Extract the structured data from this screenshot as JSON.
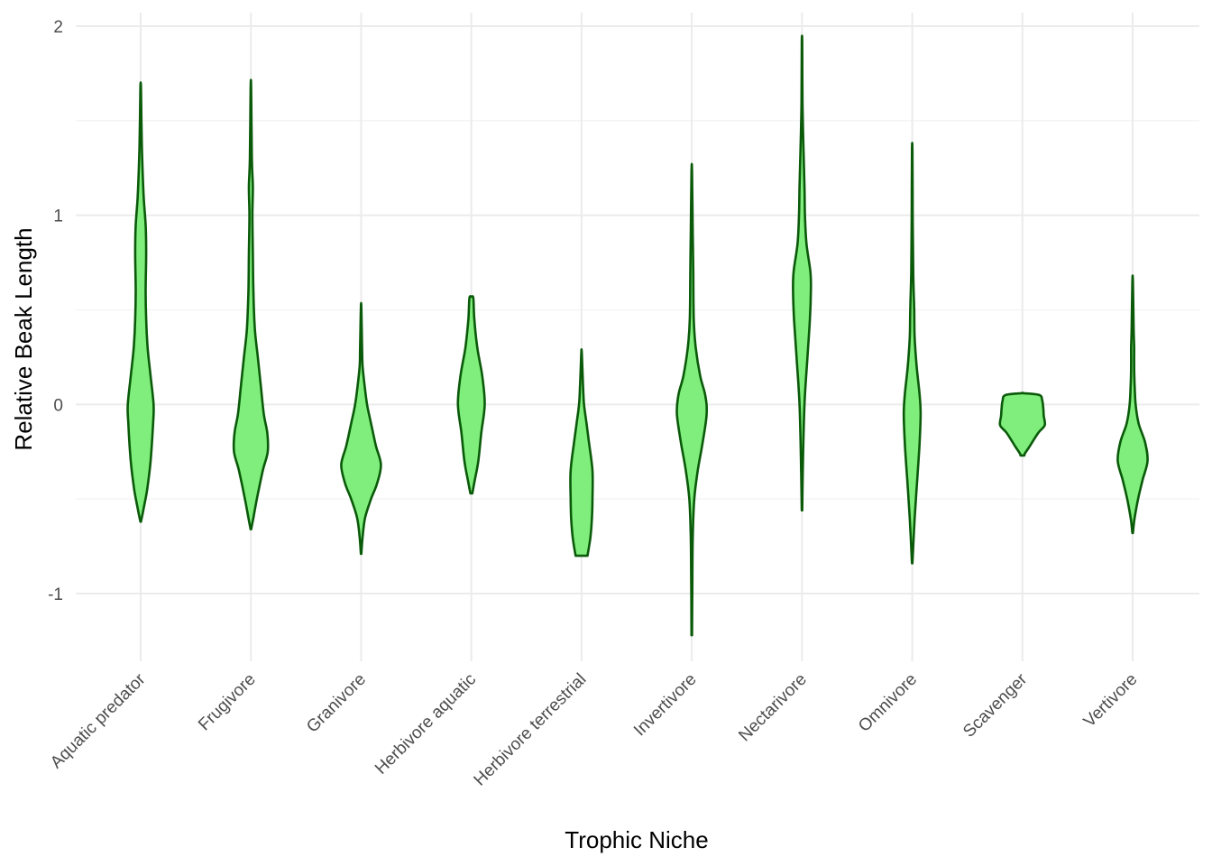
{
  "chart_data": {
    "type": "violin",
    "xlabel": "Trophic Niche",
    "ylabel": "Relative Beak Length",
    "ylim": [
      -1.35,
      2.07
    ],
    "yticks": [
      -1,
      0,
      1,
      2
    ],
    "ytick_labels": [
      "-1",
      "0",
      "1",
      "2"
    ],
    "grid": true,
    "fill_color": "#80ee7c",
    "stroke_color": "#0a5a0a",
    "categories": [
      "Aquatic predator",
      "Frugivore",
      "Granivore",
      "Herbivore aquatic",
      "Herbivore terrestrial",
      "Invertivore",
      "Nectarivore",
      "Omnivore",
      "Scavenger",
      "Vertivore"
    ],
    "violins": [
      {
        "category": "Aquatic predator",
        "profile": [
          [
            -0.62,
            0.005
          ],
          [
            -0.55,
            0.06
          ],
          [
            -0.45,
            0.13
          ],
          [
            -0.3,
            0.2
          ],
          [
            -0.1,
            0.25
          ],
          [
            0,
            0.26
          ],
          [
            0.15,
            0.2
          ],
          [
            0.3,
            0.14
          ],
          [
            0.45,
            0.11
          ],
          [
            0.6,
            0.1
          ],
          [
            0.8,
            0.11
          ],
          [
            0.95,
            0.1
          ],
          [
            1.1,
            0.06
          ],
          [
            1.3,
            0.03
          ],
          [
            1.5,
            0.015
          ],
          [
            1.68,
            0.005
          ]
        ]
      },
      {
        "category": "Frugivore",
        "profile": [
          [
            -0.66,
            0.005
          ],
          [
            -0.6,
            0.05
          ],
          [
            -0.5,
            0.12
          ],
          [
            -0.35,
            0.24
          ],
          [
            -0.25,
            0.34
          ],
          [
            -0.15,
            0.33
          ],
          [
            -0.05,
            0.26
          ],
          [
            0.1,
            0.2
          ],
          [
            0.25,
            0.14
          ],
          [
            0.4,
            0.08
          ],
          [
            0.6,
            0.05
          ],
          [
            0.8,
            0.04
          ],
          [
            1.0,
            0.03
          ],
          [
            1.15,
            0.04
          ],
          [
            1.3,
            0.02
          ],
          [
            1.67,
            0.005
          ]
        ]
      },
      {
        "category": "Granivore",
        "profile": [
          [
            -0.79,
            0.005
          ],
          [
            -0.7,
            0.03
          ],
          [
            -0.6,
            0.08
          ],
          [
            -0.5,
            0.2
          ],
          [
            -0.42,
            0.32
          ],
          [
            -0.32,
            0.4
          ],
          [
            -0.22,
            0.3
          ],
          [
            -0.1,
            0.2
          ],
          [
            0,
            0.12
          ],
          [
            0.1,
            0.07
          ],
          [
            0.2,
            0.03
          ],
          [
            0.3,
            0.02
          ],
          [
            0.51,
            0.005
          ]
        ]
      },
      {
        "category": "Herbivore aquatic",
        "profile": [
          [
            -0.47,
            0.02
          ],
          [
            -0.4,
            0.07
          ],
          [
            -0.3,
            0.14
          ],
          [
            -0.15,
            0.2
          ],
          [
            0,
            0.27
          ],
          [
            0.15,
            0.22
          ],
          [
            0.3,
            0.12
          ],
          [
            0.45,
            0.06
          ],
          [
            0.56,
            0.04
          ],
          [
            0.57,
            0.005
          ]
        ]
      },
      {
        "category": "Herbivore terrestrial",
        "profile": [
          [
            -0.8,
            0.12
          ],
          [
            -0.7,
            0.18
          ],
          [
            -0.6,
            0.21
          ],
          [
            -0.5,
            0.22
          ],
          [
            -0.35,
            0.22
          ],
          [
            -0.2,
            0.15
          ],
          [
            -0.1,
            0.1
          ],
          [
            0,
            0.05
          ],
          [
            0.1,
            0.03
          ],
          [
            0.27,
            0.005
          ]
        ]
      },
      {
        "category": "Invertivore",
        "profile": [
          [
            -1.22,
            0.005
          ],
          [
            -1.0,
            0.01
          ],
          [
            -0.7,
            0.02
          ],
          [
            -0.5,
            0.05
          ],
          [
            -0.35,
            0.12
          ],
          [
            -0.2,
            0.22
          ],
          [
            -0.05,
            0.3
          ],
          [
            0.05,
            0.27
          ],
          [
            0.15,
            0.17
          ],
          [
            0.3,
            0.08
          ],
          [
            0.45,
            0.04
          ],
          [
            0.7,
            0.03
          ],
          [
            0.9,
            0.02
          ],
          [
            1.23,
            0.005
          ]
        ]
      },
      {
        "category": "Nectarivore",
        "profile": [
          [
            -0.56,
            0.005
          ],
          [
            -0.3,
            0.02
          ],
          [
            0,
            0.05
          ],
          [
            0.25,
            0.11
          ],
          [
            0.45,
            0.16
          ],
          [
            0.6,
            0.18
          ],
          [
            0.7,
            0.17
          ],
          [
            0.85,
            0.09
          ],
          [
            1.0,
            0.06
          ],
          [
            1.15,
            0.05
          ],
          [
            1.35,
            0.03
          ],
          [
            1.6,
            0.01
          ],
          [
            1.91,
            0.005
          ]
        ]
      },
      {
        "category": "Omnivore",
        "profile": [
          [
            -0.84,
            0.005
          ],
          [
            -0.6,
            0.05
          ],
          [
            -0.4,
            0.1
          ],
          [
            -0.2,
            0.15
          ],
          [
            -0.05,
            0.17
          ],
          [
            0.05,
            0.15
          ],
          [
            0.2,
            0.09
          ],
          [
            0.35,
            0.05
          ],
          [
            0.5,
            0.04
          ],
          [
            0.7,
            0.02
          ],
          [
            1.0,
            0.01
          ],
          [
            1.34,
            0.005
          ]
        ]
      },
      {
        "category": "Scavenger",
        "profile": [
          [
            -0.27,
            0.04
          ],
          [
            -0.26,
            0.05
          ],
          [
            -0.22,
            0.15
          ],
          [
            -0.15,
            0.32
          ],
          [
            -0.11,
            0.45
          ],
          [
            -0.06,
            0.43
          ],
          [
            -0.02,
            0.42
          ],
          [
            0.02,
            0.4
          ],
          [
            0.05,
            0.34
          ],
          [
            0.06,
            0.004
          ]
        ]
      },
      {
        "category": "Vertivore",
        "profile": [
          [
            -0.68,
            0.005
          ],
          [
            -0.6,
            0.04
          ],
          [
            -0.5,
            0.11
          ],
          [
            -0.4,
            0.2
          ],
          [
            -0.3,
            0.3
          ],
          [
            -0.2,
            0.25
          ],
          [
            -0.1,
            0.12
          ],
          [
            0,
            0.06
          ],
          [
            0.1,
            0.04
          ],
          [
            0.2,
            0.03
          ],
          [
            0.3,
            0.03
          ],
          [
            0.4,
            0.02
          ],
          [
            0.65,
            0.005
          ]
        ]
      }
    ]
  }
}
